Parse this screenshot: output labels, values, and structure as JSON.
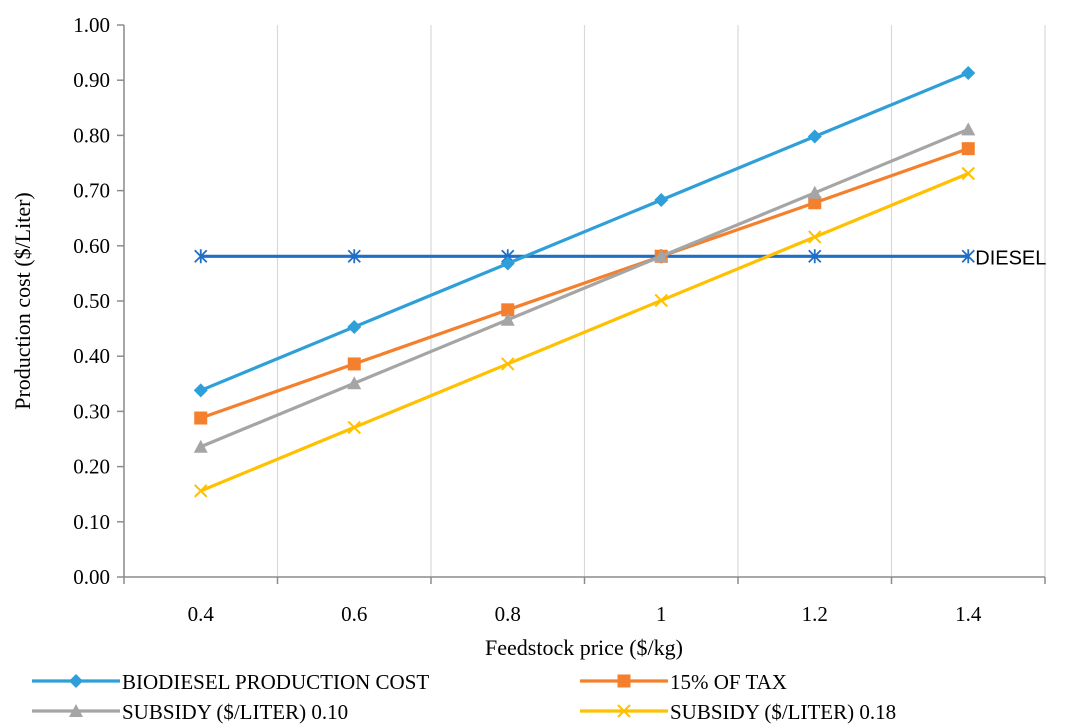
{
  "chart_data": {
    "type": "line",
    "xlabel": "Feedstock  price ($/kg)",
    "ylabel": "Production cost ($/Liter)",
    "ylim": [
      0,
      1.0
    ],
    "y_ticks": [
      "0.00",
      "0.10",
      "0.20",
      "0.30",
      "0.40",
      "0.50",
      "0.60",
      "0.70",
      "0.80",
      "0.90",
      "1.00"
    ],
    "x_categories": [
      "0.4",
      "0.6",
      "0.8",
      "1",
      "1.2",
      "1.4"
    ],
    "grid": "vertical",
    "legend_position": "bottom",
    "series": [
      {
        "name": "BIODIESEL PRODUCTION COST",
        "color": "#2E9FD8",
        "marker": "diamond",
        "values": [
          0.338,
          0.453,
          0.568,
          0.683,
          0.798,
          0.913
        ]
      },
      {
        "name": "15% OF TAX",
        "color": "#F47F2C",
        "marker": "square",
        "values": [
          0.288,
          0.386,
          0.484,
          0.581,
          0.678,
          0.776
        ]
      },
      {
        "name": "SUBSIDY ($/LITER) 0.10",
        "color": "#A5A5A5",
        "marker": "triangle",
        "values": [
          0.236,
          0.351,
          0.466,
          0.581,
          0.696,
          0.811
        ]
      },
      {
        "name": "SUBSIDY ($/LITER) 0.18",
        "color": "#FFC000",
        "marker": "x",
        "values": [
          0.156,
          0.271,
          0.386,
          0.501,
          0.616,
          0.731
        ]
      },
      {
        "name": "DIESEL",
        "color": "#1F6FC6",
        "marker": "asterisk",
        "values": [
          0.581,
          0.581,
          0.581,
          0.581,
          0.581,
          0.581
        ]
      }
    ],
    "annotations": [
      {
        "text": "DIESEL",
        "series": "DIESEL"
      }
    ]
  }
}
